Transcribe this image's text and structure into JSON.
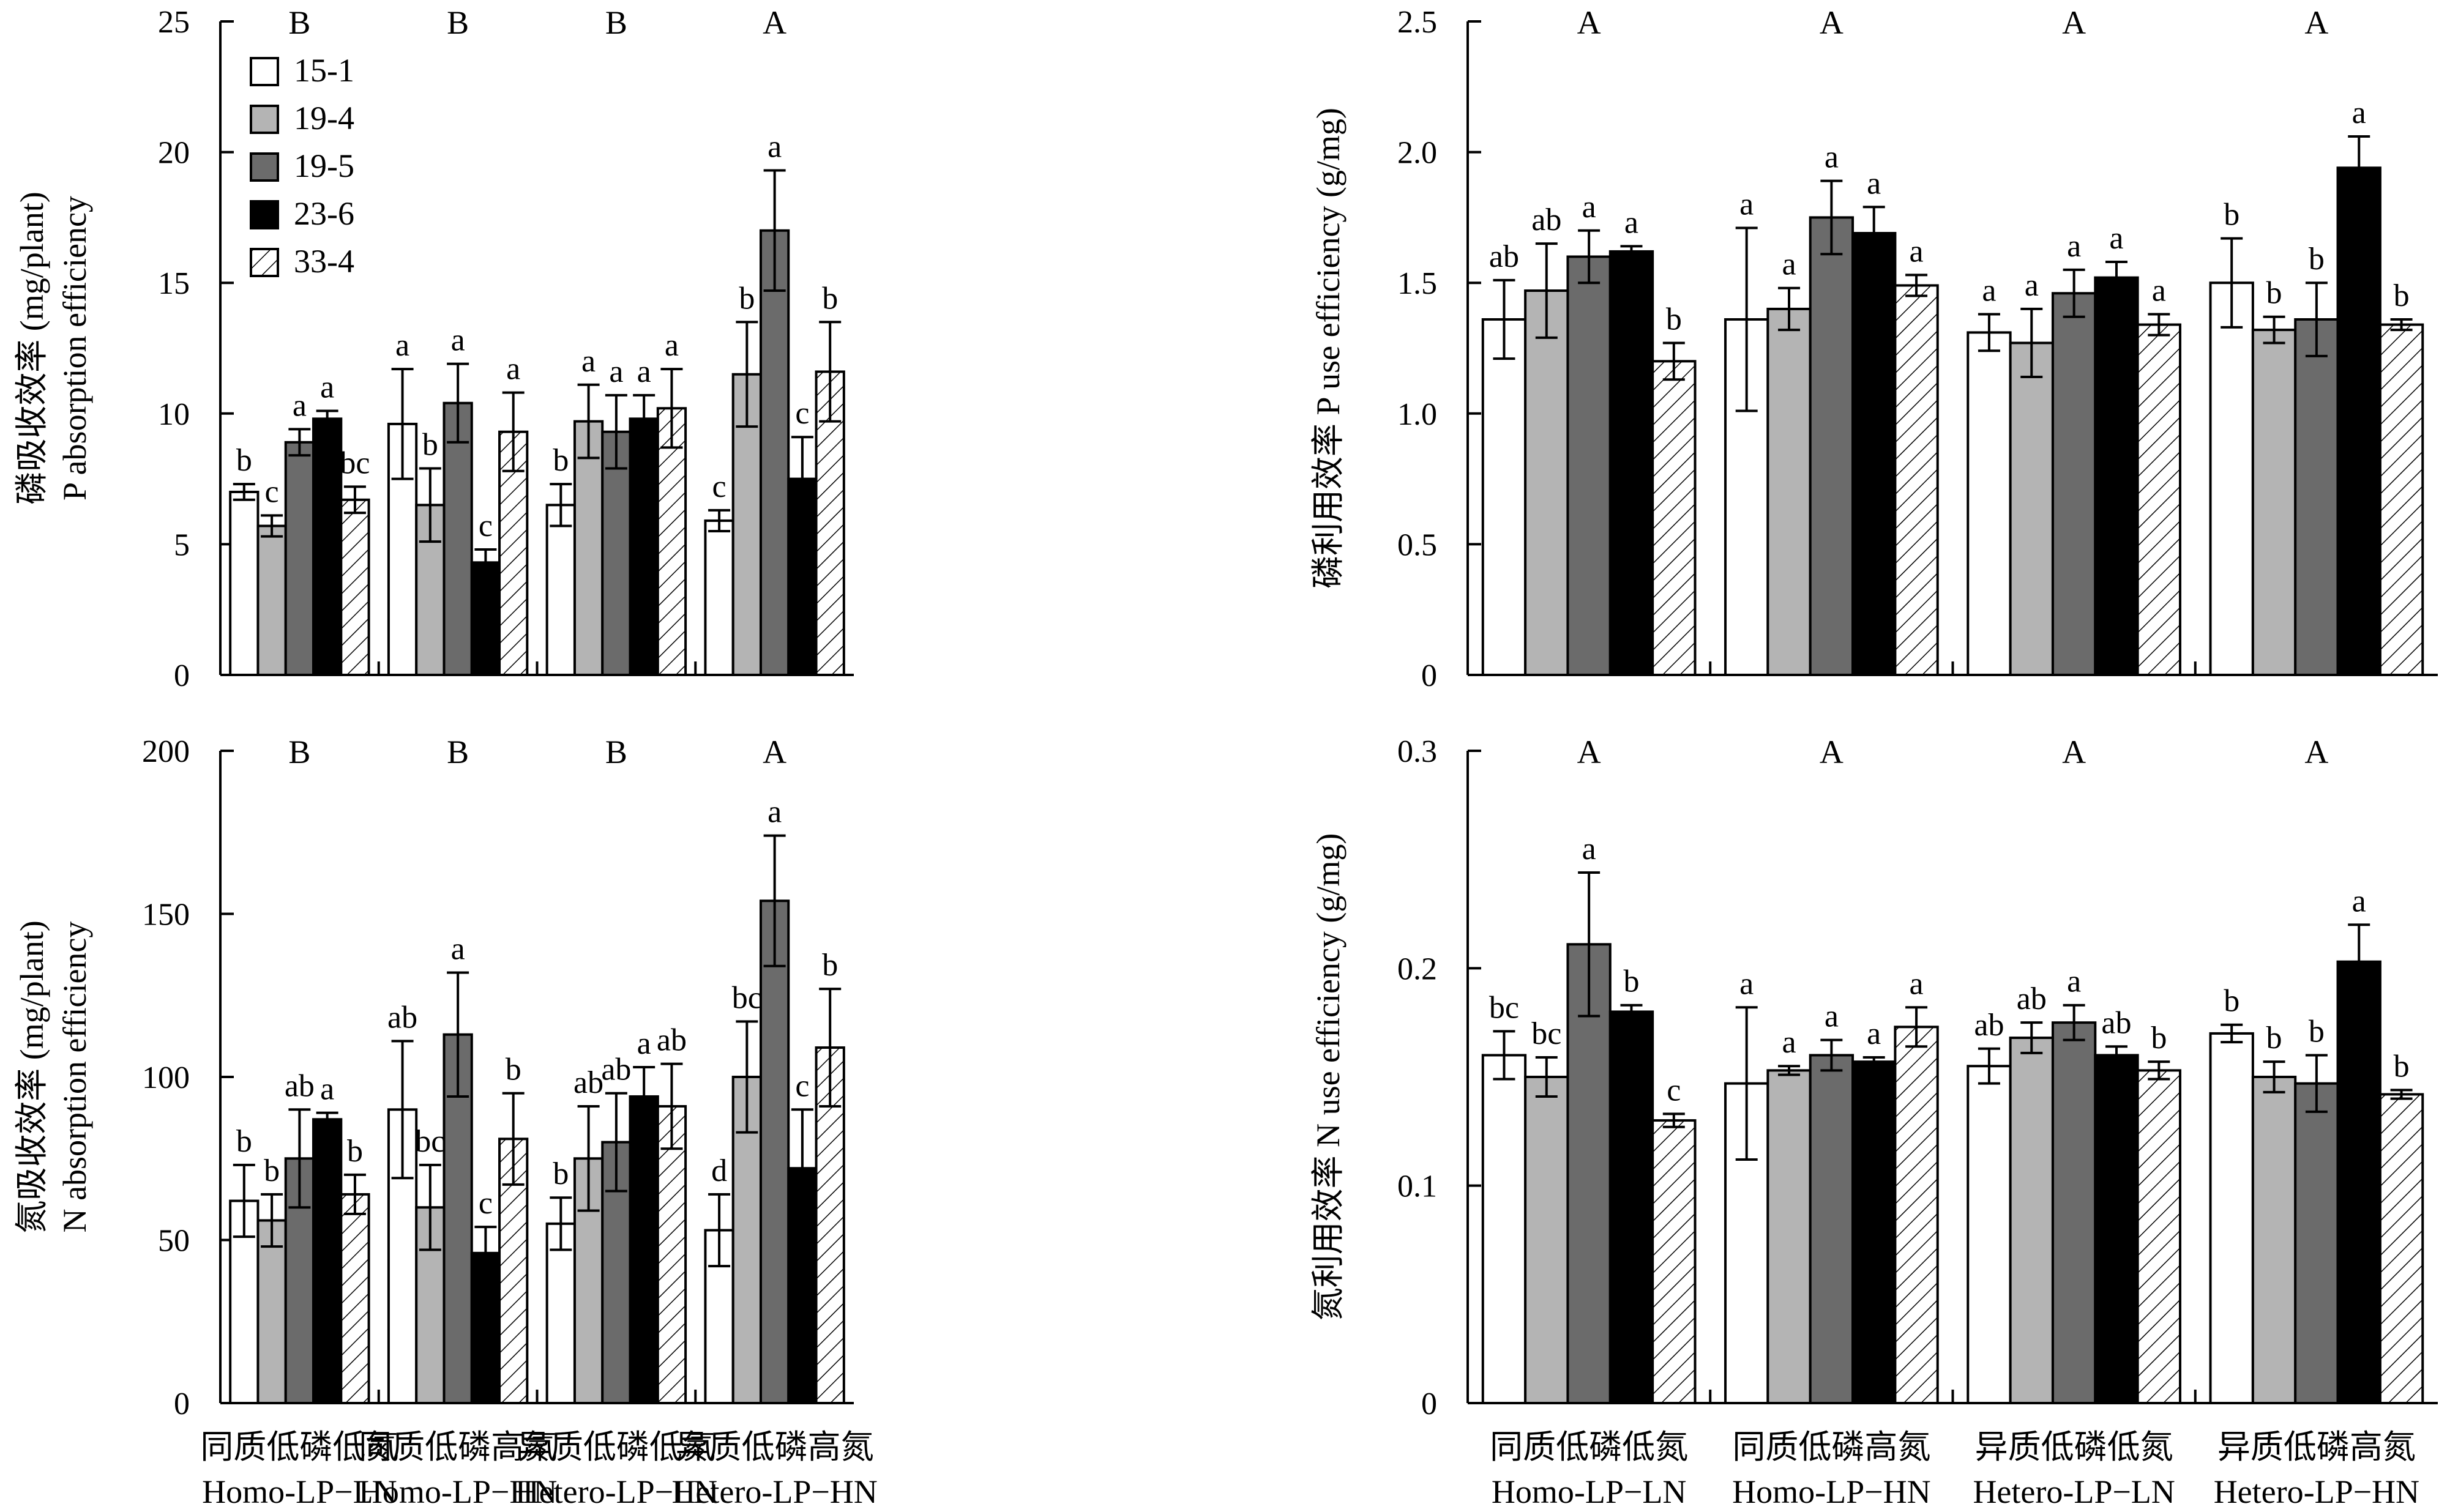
{
  "legend": [
    {
      "name": "15-1",
      "fill": "#ffffff",
      "hatch": false
    },
    {
      "name": "19-4",
      "fill": "#b4b4b4",
      "hatch": false
    },
    {
      "name": "19-5",
      "fill": "#6b6b6b",
      "hatch": false
    },
    {
      "name": "23-6",
      "fill": "#000000",
      "hatch": false
    },
    {
      "name": "33-4",
      "fill": "#ffffff",
      "hatch": true
    }
  ],
  "colors": {
    "axis": "#000000",
    "bar_edge": "#000000"
  },
  "groups": [
    {
      "cn": "同质低磷低氮",
      "en": "Homo-LP−LN"
    },
    {
      "cn": "同质低磷高氮",
      "en": "Homo-LP−HN"
    },
    {
      "cn": "异质低磷低氮",
      "en": "Hetero-LP−LN"
    },
    {
      "cn": "异质低磷高氮",
      "en": "Hetero-LP−HN"
    }
  ],
  "chart_data": [
    {
      "id": "p-absorption",
      "type": "bar",
      "ylabel_cn": "磷吸收效率 (mg/plant)",
      "ylabel_en": "P absorption efficiency",
      "ylim": [
        0,
        25
      ],
      "yticks": [
        0,
        5,
        10,
        15,
        20,
        25
      ],
      "yticklabels": [
        "0",
        "5",
        "10",
        "15",
        "20",
        "25"
      ],
      "group_letters": [
        "B",
        "B",
        "B",
        "A"
      ],
      "series": [
        {
          "name": "15-1",
          "values": [
            7.0,
            9.6,
            6.5,
            5.9
          ],
          "errors": [
            0.3,
            2.1,
            0.8,
            0.4
          ],
          "letters": [
            "b",
            "a",
            "b",
            "c"
          ]
        },
        {
          "name": "19-4",
          "values": [
            5.7,
            6.5,
            9.7,
            11.5
          ],
          "errors": [
            0.4,
            1.4,
            1.4,
            2.0
          ],
          "letters": [
            "c",
            "b",
            "a",
            "b"
          ]
        },
        {
          "name": "19-5",
          "values": [
            8.9,
            10.4,
            9.3,
            17.0
          ],
          "errors": [
            0.5,
            1.5,
            1.4,
            2.3
          ],
          "letters": [
            "a",
            "a",
            "a",
            "a"
          ]
        },
        {
          "name": "23-6",
          "values": [
            9.8,
            4.3,
            9.8,
            7.5
          ],
          "errors": [
            0.3,
            0.5,
            0.9,
            1.6
          ],
          "letters": [
            "a",
            "c",
            "a",
            "c"
          ]
        },
        {
          "name": "33-4",
          "values": [
            6.7,
            9.3,
            10.2,
            11.6
          ],
          "errors": [
            0.5,
            1.5,
            1.5,
            1.9
          ],
          "letters": [
            "bc",
            "a",
            "a",
            "b"
          ]
        }
      ]
    },
    {
      "id": "p-use",
      "type": "bar",
      "ylabel_cn": "磷利用效率 P use efficiency (g/mg)",
      "ylabel_en": "",
      "ylim": [
        0,
        2.5
      ],
      "yticks": [
        0,
        0.5,
        1.0,
        1.5,
        2.0,
        2.5
      ],
      "yticklabels": [
        "0",
        "0.5",
        "1.0",
        "1.5",
        "2.0",
        "2.5"
      ],
      "group_letters": [
        "A",
        "A",
        "A",
        "A"
      ],
      "series": [
        {
          "name": "15-1",
          "values": [
            1.36,
            1.36,
            1.31,
            1.5
          ],
          "errors": [
            0.15,
            0.35,
            0.07,
            0.17
          ],
          "letters": [
            "ab",
            "a",
            "a",
            "b"
          ]
        },
        {
          "name": "19-4",
          "values": [
            1.47,
            1.4,
            1.27,
            1.32
          ],
          "errors": [
            0.18,
            0.08,
            0.13,
            0.05
          ],
          "letters": [
            "ab",
            "a",
            "a",
            "b"
          ]
        },
        {
          "name": "19-5",
          "values": [
            1.6,
            1.75,
            1.46,
            1.36
          ],
          "errors": [
            0.1,
            0.14,
            0.09,
            0.14
          ],
          "letters": [
            "a",
            "a",
            "a",
            "b"
          ]
        },
        {
          "name": "23-6",
          "values": [
            1.62,
            1.69,
            1.52,
            1.94
          ],
          "errors": [
            0.02,
            0.1,
            0.06,
            0.12
          ],
          "letters": [
            "a",
            "a",
            "a",
            "a"
          ]
        },
        {
          "name": "33-4",
          "values": [
            1.2,
            1.49,
            1.34,
            1.34
          ],
          "errors": [
            0.07,
            0.04,
            0.04,
            0.02
          ],
          "letters": [
            "b",
            "a",
            "a",
            "b"
          ]
        }
      ]
    },
    {
      "id": "n-absorption",
      "type": "bar",
      "ylabel_cn": "氮吸收效率 (mg/plant)",
      "ylabel_en": "N absorption efficiency",
      "ylim": [
        0,
        200
      ],
      "yticks": [
        0,
        50,
        100,
        150,
        200
      ],
      "yticklabels": [
        "0",
        "50",
        "100",
        "150",
        "200"
      ],
      "group_letters": [
        "B",
        "B",
        "B",
        "A"
      ],
      "series": [
        {
          "name": "15-1",
          "values": [
            62,
            90,
            55,
            53
          ],
          "errors": [
            11,
            21,
            8,
            11
          ],
          "letters": [
            "b",
            "ab",
            "b",
            "d"
          ]
        },
        {
          "name": "19-4",
          "values": [
            56,
            60,
            75,
            100
          ],
          "errors": [
            8,
            13,
            16,
            17
          ],
          "letters": [
            "b",
            "bc",
            "ab",
            "bc"
          ]
        },
        {
          "name": "19-5",
          "values": [
            75,
            113,
            80,
            154
          ],
          "errors": [
            15,
            19,
            15,
            20
          ],
          "letters": [
            "ab",
            "a",
            "ab",
            "a"
          ]
        },
        {
          "name": "23-6",
          "values": [
            87,
            46,
            94,
            72
          ],
          "errors": [
            2,
            8,
            9,
            18
          ],
          "letters": [
            "a",
            "c",
            "a",
            "c"
          ]
        },
        {
          "name": "33-4",
          "values": [
            64,
            81,
            91,
            109
          ],
          "errors": [
            6,
            14,
            13,
            18
          ],
          "letters": [
            "b",
            "b",
            "ab",
            "b"
          ]
        }
      ]
    },
    {
      "id": "n-use",
      "type": "bar",
      "ylabel_cn": "氮利用效率 N use efficiency (g/mg)",
      "ylabel_en": "",
      "ylim": [
        0,
        0.3
      ],
      "yticks": [
        0,
        0.1,
        0.2,
        0.3
      ],
      "yticklabels": [
        "0",
        "0.1",
        "0.2",
        "0.3"
      ],
      "group_letters": [
        "A",
        "A",
        "A",
        "A"
      ],
      "series": [
        {
          "name": "15-1",
          "values": [
            0.16,
            0.147,
            0.155,
            0.17
          ],
          "errors": [
            0.011,
            0.035,
            0.008,
            0.004
          ],
          "letters": [
            "bc",
            "a",
            "ab",
            "b"
          ]
        },
        {
          "name": "19-4",
          "values": [
            0.15,
            0.153,
            0.168,
            0.15
          ],
          "errors": [
            0.009,
            0.002,
            0.007,
            0.007
          ],
          "letters": [
            "bc",
            "a",
            "ab",
            "b"
          ]
        },
        {
          "name": "19-5",
          "values": [
            0.211,
            0.16,
            0.175,
            0.147
          ],
          "errors": [
            0.033,
            0.007,
            0.008,
            0.013
          ],
          "letters": [
            "a",
            "a",
            "a",
            "b"
          ]
        },
        {
          "name": "23-6",
          "values": [
            0.18,
            0.157,
            0.16,
            0.203
          ],
          "errors": [
            0.003,
            0.002,
            0.004,
            0.017
          ],
          "letters": [
            "b",
            "a",
            "ab",
            "a"
          ]
        },
        {
          "name": "33-4",
          "values": [
            0.13,
            0.173,
            0.153,
            0.142
          ],
          "errors": [
            0.003,
            0.009,
            0.004,
            0.002
          ],
          "letters": [
            "c",
            "a",
            "b",
            "b"
          ]
        }
      ]
    }
  ]
}
